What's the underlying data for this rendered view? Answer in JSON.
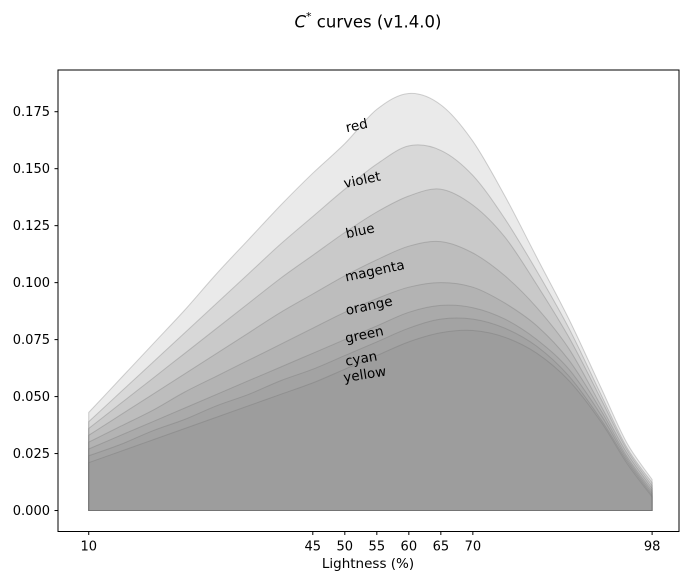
{
  "title": {
    "var": "C",
    "sup": "*",
    "rest": " curves (v1.4.0)"
  },
  "chart_data": {
    "type": "area",
    "title": "C* curves (v1.4.0)",
    "xlabel": "Lightness (%)",
    "ylabel": "",
    "grid": false,
    "legend": "inline-rotated-annotations",
    "xlim": [
      5.2,
      102.2
    ],
    "ylim": [
      -0.0092,
      0.1933
    ],
    "x_tick_labels": [
      "10",
      "45",
      "50",
      "55",
      "60",
      "65",
      "70",
      "98"
    ],
    "x_tick_values": [
      10,
      45,
      50,
      55,
      60,
      65,
      70,
      98
    ],
    "y_tick_labels": [
      "0.000",
      "0.025",
      "0.050",
      "0.075",
      "0.100",
      "0.125",
      "0.150",
      "0.175"
    ],
    "y_tick_values": [
      0,
      0.025,
      0.05,
      0.075,
      0.1,
      0.125,
      0.15,
      0.175
    ],
    "fill_color": "#808080",
    "fill_alpha": 0.17,
    "edge_color": "#6e6e6e",
    "edge_alpha": 0.3,
    "frame_color": "#000000",
    "x": [
      10,
      15,
      20,
      25,
      30,
      35,
      40,
      45,
      50,
      55,
      60,
      65,
      70,
      75,
      80,
      85,
      90,
      94,
      98
    ],
    "series": [
      {
        "name": "red",
        "label": {
          "x": 50.3,
          "y": 0.166,
          "rot": -12
        },
        "values": [
          0.043,
          0.058,
          0.073,
          0.088,
          0.104,
          0.119,
          0.134,
          0.148,
          0.161,
          0.176,
          0.183,
          0.178,
          0.162,
          0.138,
          0.111,
          0.084,
          0.054,
          0.03,
          0.0136
        ]
      },
      {
        "name": "violet",
        "label": {
          "x": 50.0,
          "y": 0.1415,
          "rot": -12
        },
        "values": [
          0.039,
          0.052,
          0.065,
          0.078,
          0.091,
          0.104,
          0.117,
          0.129,
          0.141,
          0.152,
          0.16,
          0.158,
          0.147,
          0.128,
          0.105,
          0.08,
          0.051,
          0.028,
          0.0122
        ]
      },
      {
        "name": "blue",
        "label": {
          "x": 50.3,
          "y": 0.1195,
          "rot": -12
        },
        "values": [
          0.036,
          0.047,
          0.058,
          0.069,
          0.08,
          0.091,
          0.102,
          0.112,
          0.122,
          0.131,
          0.138,
          0.141,
          0.134,
          0.12,
          0.099,
          0.076,
          0.049,
          0.027,
          0.0109
        ]
      },
      {
        "name": "magenta",
        "label": {
          "x": 50.2,
          "y": 0.1005,
          "rot": -12
        },
        "values": [
          0.033,
          0.042,
          0.051,
          0.06,
          0.069,
          0.078,
          0.087,
          0.095,
          0.103,
          0.11,
          0.116,
          0.118,
          0.113,
          0.103,
          0.089,
          0.071,
          0.046,
          0.0255,
          0.0097
        ]
      },
      {
        "name": "orange",
        "label": {
          "x": 50.3,
          "y": 0.0858,
          "rot": -12
        },
        "values": [
          0.03,
          0.037,
          0.044,
          0.052,
          0.059,
          0.066,
          0.073,
          0.08,
          0.087,
          0.093,
          0.098,
          0.1,
          0.098,
          0.091,
          0.081,
          0.066,
          0.044,
          0.024,
          0.0086
        ]
      },
      {
        "name": "green",
        "label": {
          "x": 50.2,
          "y": 0.0735,
          "rot": -12
        },
        "values": [
          0.027,
          0.033,
          0.039,
          0.045,
          0.051,
          0.057,
          0.063,
          0.069,
          0.075,
          0.081,
          0.087,
          0.09,
          0.089,
          0.084,
          0.075,
          0.062,
          0.042,
          0.023,
          0.0076
        ]
      },
      {
        "name": "cyan",
        "label": {
          "x": 50.2,
          "y": 0.0635,
          "rot": -10
        },
        "values": [
          0.024,
          0.029,
          0.035,
          0.04,
          0.046,
          0.051,
          0.057,
          0.062,
          0.068,
          0.074,
          0.08,
          0.084,
          0.084,
          0.08,
          0.072,
          0.059,
          0.04,
          0.022,
          0.0067
        ]
      },
      {
        "name": "yellow",
        "label": {
          "x": 49.9,
          "y": 0.0563,
          "rot": -9
        },
        "values": [
          0.021,
          0.026,
          0.031,
          0.036,
          0.041,
          0.046,
          0.051,
          0.056,
          0.062,
          0.068,
          0.074,
          0.078,
          0.079,
          0.076,
          0.069,
          0.057,
          0.039,
          0.021,
          0.006
        ]
      }
    ]
  }
}
